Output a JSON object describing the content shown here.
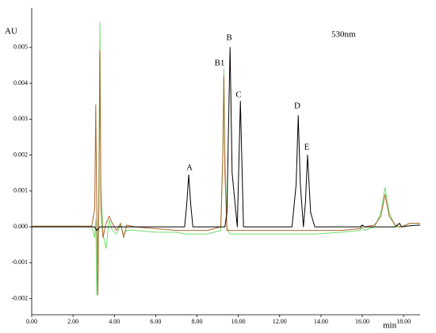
{
  "chart_data": {
    "type": "line",
    "subtitle": "530nm",
    "y_label": "AU",
    "x_label": "min",
    "annotations": [
      "A",
      "B1",
      "B",
      "C",
      "D",
      "E"
    ],
    "xlim": [
      0,
      18.8
    ],
    "ylim": [
      -0.00245,
      0.0061
    ],
    "xticks": [
      {
        "value": 0,
        "label": "0.00"
      },
      {
        "value": 2,
        "label": "2.00"
      },
      {
        "value": 4,
        "label": "4.00"
      },
      {
        "value": 6,
        "label": "6.00"
      },
      {
        "value": 8,
        "label": "8.00"
      },
      {
        "value": 10,
        "label": "10.00"
      },
      {
        "value": 12,
        "label": "12.00"
      },
      {
        "value": 14,
        "label": "14.00"
      },
      {
        "value": 16,
        "label": "16.00"
      },
      {
        "value": 18,
        "label": "18.00"
      }
    ],
    "yticks": [
      -0.002,
      -0.001,
      {
        "value": 0,
        "label": "0.000"
      },
      0.001,
      0.002,
      0.003,
      0.004,
      0.005
    ],
    "x": [
      0,
      2.9,
      3.05,
      3.1,
      3.15,
      3.2,
      3.25,
      3.3,
      3.35,
      3.45,
      3.6,
      3.75,
      3.9,
      4.1,
      4.3,
      4.45,
      4.6,
      5.0,
      6.0,
      7.0,
      7.4,
      7.5,
      7.6,
      7.7,
      7.8,
      8.5,
      9.15,
      9.25,
      9.3,
      9.35,
      9.45,
      9.5,
      9.6,
      9.7,
      9.95,
      10.1,
      10.25,
      11.0,
      12.6,
      12.8,
      12.9,
      13.0,
      13.15,
      13.25,
      13.35,
      13.5,
      13.7,
      15.0,
      15.9,
      16.0,
      16.1,
      16.6,
      16.9,
      17.1,
      17.3,
      17.6,
      17.8,
      17.9,
      18.3,
      18.8
    ],
    "series": [
      {
        "color": "#6fe06f",
        "values": [
          2e-05,
          2e-05,
          -0.0003,
          0.0002,
          -0.0019,
          -0.0008,
          0.0012,
          0.0057,
          0.0012,
          -0.0002,
          -0.0006,
          0.0002,
          -0.0001,
          -0.0002,
          5e-05,
          -0.0002,
          -0.0001,
          -0.0001,
          -0.00015,
          -0.00015,
          -0.0002,
          -0.0002,
          -0.0002,
          -0.0002,
          -0.0002,
          -0.0002,
          -0.0001,
          0.002,
          0.0044,
          0.002,
          0,
          -0.0001,
          -0.0002,
          -0.0002,
          -0.0002,
          -0.0002,
          -0.0002,
          -0.0002,
          -0.0002,
          -0.0002,
          -0.0002,
          -0.0002,
          -0.0002,
          -0.0002,
          -0.0002,
          -0.0002,
          -0.0002,
          -0.00015,
          -0.0001,
          0,
          -0.0001,
          0,
          0.0004,
          0.0011,
          0.0004,
          0,
          0,
          0,
          0.0001,
          0.0001
        ]
      },
      {
        "color": "#b0662a",
        "values": [
          2e-05,
          2e-05,
          0.0005,
          0.0034,
          0.0004,
          -0.0019,
          0.0005,
          0.0049,
          0.0005,
          -0.0003,
          0.0001,
          0.0003,
          0.0001,
          -0.0001,
          0.0001,
          -0.0003,
          5e-05,
          0,
          -5e-05,
          -0.0001,
          -0.0001,
          -0.0001,
          -0.0001,
          -0.0001,
          -0.0001,
          -0.0001,
          0,
          0.002,
          0.0042,
          0.0015,
          -0.0001,
          -0.0001,
          -0.0001,
          -0.0001,
          -0.0001,
          -0.0001,
          -0.0001,
          -0.0001,
          -0.0001,
          -0.0001,
          -0.0001,
          -0.0001,
          -0.0001,
          -0.0001,
          -0.0001,
          -0.0001,
          -0.0001,
          -0.0001,
          -5e-05,
          5e-05,
          0,
          5e-05,
          0.0003,
          0.0009,
          0.0003,
          5e-05,
          0,
          0,
          0.0001,
          0.0001
        ]
      },
      {
        "color": "#000000",
        "values": [
          0,
          0,
          0,
          -5e-05,
          -0.0001,
          -8e-05,
          -3e-05,
          0,
          0,
          0,
          0,
          0,
          0,
          0,
          0,
          0,
          0,
          0,
          0,
          0,
          0,
          0.0006,
          0.00145,
          0.0006,
          0,
          0,
          0,
          0,
          0,
          0,
          0.0004,
          0.002,
          0.005,
          0.0015,
          0,
          0.0035,
          0,
          0,
          0,
          0.0012,
          0.0031,
          0.0012,
          0,
          0.0007,
          0.002,
          0.0004,
          0,
          0,
          0,
          5e-05,
          0,
          0,
          0,
          0,
          0,
          0,
          0.0001,
          0,
          3e-05,
          5e-05
        ]
      }
    ]
  }
}
